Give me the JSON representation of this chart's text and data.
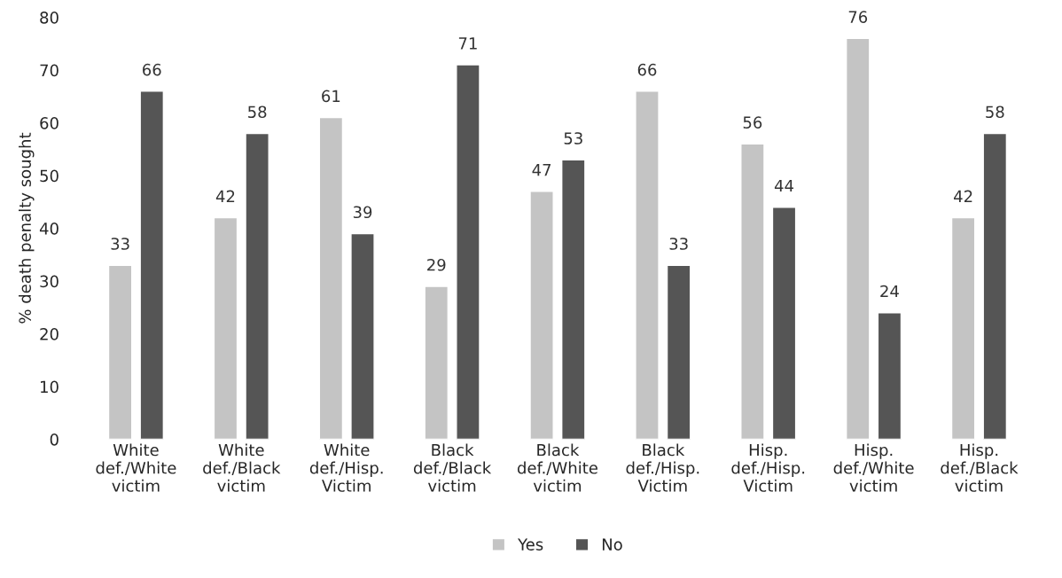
{
  "chart_data": {
    "type": "bar",
    "ylabel": "% death penalty sought",
    "categories": [
      "White def./White victim",
      "White def./Black victim",
      "White def./Hisp. Victim",
      "Black def./Black victim",
      "Black def./White victim",
      "Black def./Hisp. Victim",
      "Hisp. def./Hisp. Victim",
      "Hisp. def./White victim",
      "Hisp. def./Black victim"
    ],
    "series": [
      {
        "name": "Yes",
        "color": "#c4c4c4",
        "values": [
          33,
          42,
          61,
          29,
          47,
          66,
          56,
          76,
          42
        ]
      },
      {
        "name": "No",
        "color": "#555555",
        "values": [
          66,
          58,
          39,
          71,
          53,
          33,
          44,
          24,
          58
        ]
      }
    ],
    "ylim": [
      0,
      80
    ],
    "yticks": [
      0,
      10,
      20,
      30,
      40,
      50,
      60,
      70,
      80
    ],
    "data_labels": true,
    "legend": "bottom",
    "grid": false
  }
}
